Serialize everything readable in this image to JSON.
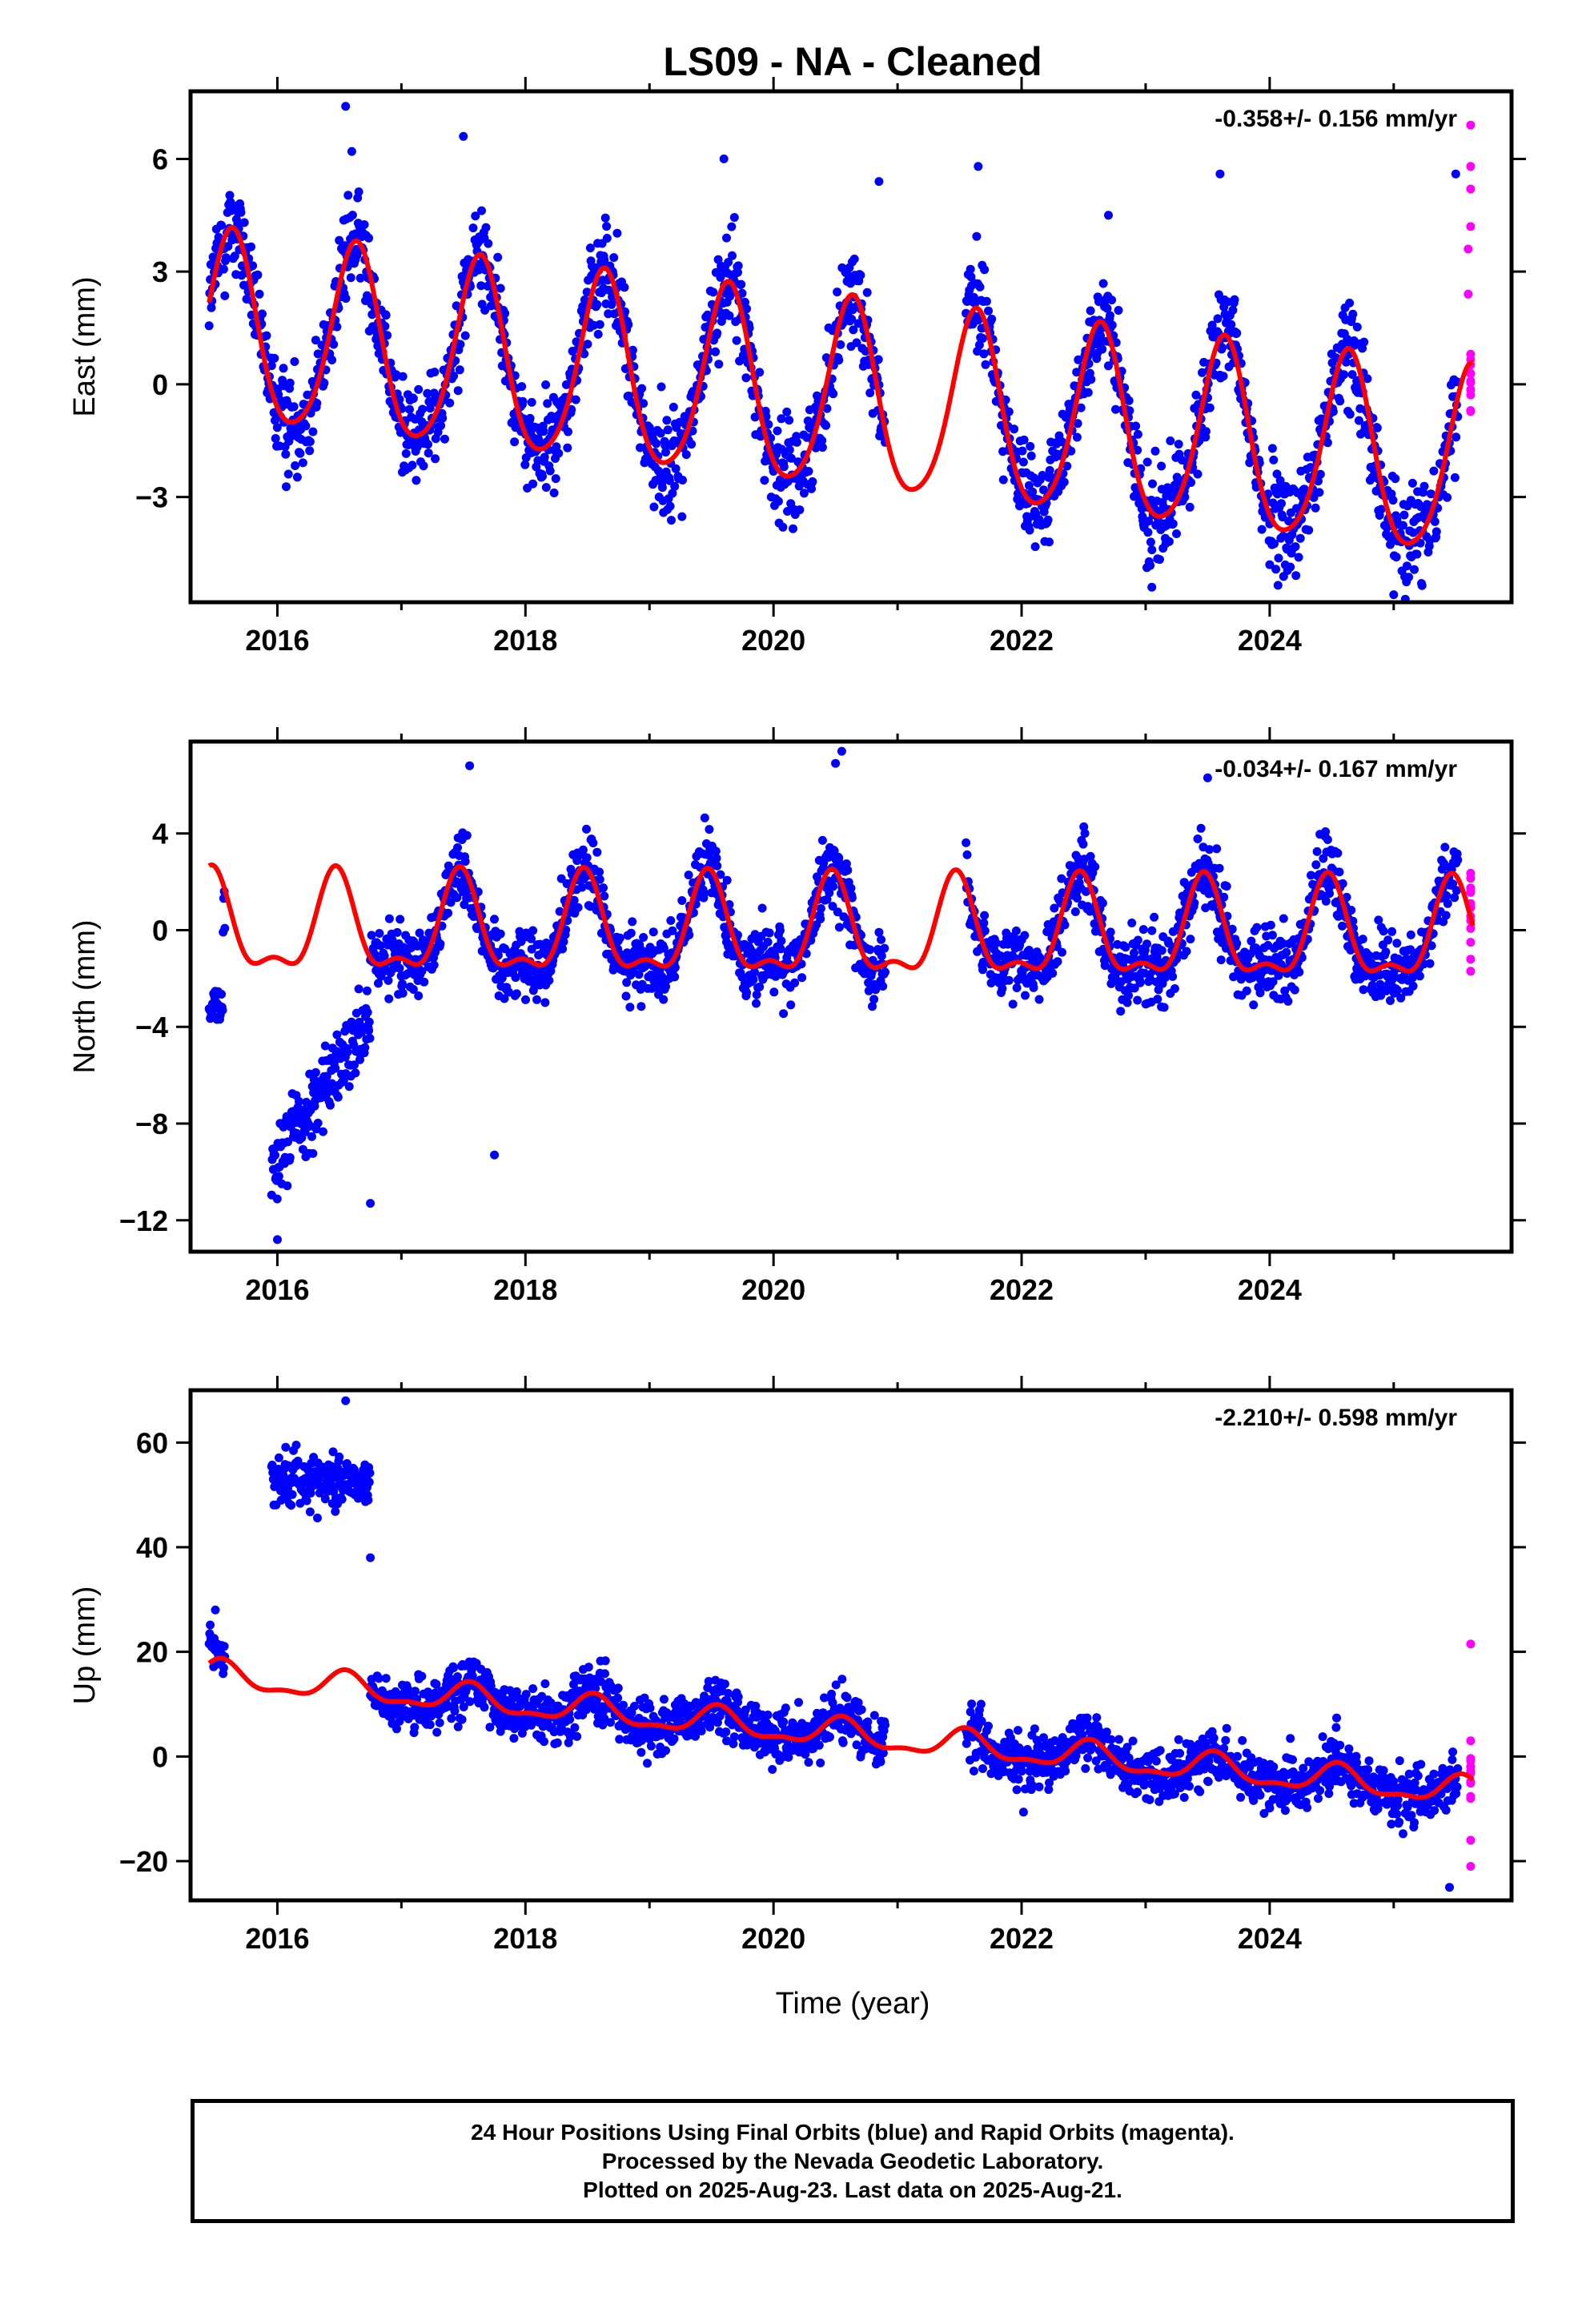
{
  "figure_title": "LS09  - NA - Cleaned",
  "xlabel": "Time (year)",
  "footer": {
    "line1": "24 Hour Positions Using Final Orbits (blue) and Rapid Orbits (magenta).",
    "line2": "Processed by the Nevada Geodetic Laboratory.",
    "line3": "Plotted on 2025-Aug-23. Last data on 2025-Aug-21."
  },
  "colors": {
    "final": "#0000ff",
    "rapid": "#ff00ff",
    "model": "#ff0000",
    "axis": "#000000"
  },
  "chart_data": [
    {
      "type": "scatter",
      "panel": "east",
      "ylabel": "East (mm)",
      "rate": "-0.358+/- 0.156 mm/yr",
      "xlim": [
        2015.3,
        2025.95
      ],
      "ylim": [
        -5.8,
        7.8
      ],
      "xticks": [
        2016,
        2018,
        2020,
        2022,
        2024
      ],
      "yticks": [
        -3,
        0,
        3,
        6
      ],
      "ytick_labels": [
        "−3",
        "0",
        "3",
        "6"
      ],
      "gaps": [
        [
          2020.9,
          2021.55
        ]
      ],
      "final_range": [
        2015.45,
        2025.52
      ],
      "rapid_range": [
        2025.53,
        2025.64
      ],
      "model": {
        "offset": 1.4,
        "trend": -0.358,
        "amp_annual": 2.5,
        "annual_phase_peak": 0.63,
        "amp_semi": 0.35,
        "semi_phase_peak": 0.15,
        "segments": [
          [
            2015.45,
            2025.64
          ]
        ]
      },
      "noise": 0.85,
      "series": [
        {
          "name": "Final Orbits (blue)",
          "points": [
            [
              2016.6,
              6.2
            ],
            [
              2016.55,
              7.4
            ],
            [
              2017.5,
              6.6
            ],
            [
              2019.6,
              6.0
            ],
            [
              2020.85,
              5.4
            ],
            [
              2021.65,
              5.8
            ],
            [
              2022.7,
              4.5
            ],
            [
              2023.05,
              -5.4
            ],
            [
              2023.6,
              5.6
            ],
            [
              2024.0,
              -4.8
            ],
            [
              2025.0,
              -5.6
            ],
            [
              2025.5,
              5.6
            ]
          ]
        },
        {
          "name": "Rapid Orbits (magenta)",
          "points": [
            [
              2025.62,
              6.9
            ],
            [
              2025.62,
              5.8
            ],
            [
              2025.62,
              5.2
            ],
            [
              2025.62,
              4.2
            ],
            [
              2025.6,
              3.6
            ],
            [
              2025.6,
              2.4
            ]
          ]
        }
      ]
    },
    {
      "type": "scatter",
      "panel": "north",
      "ylabel": "North (mm)",
      "rate": "-0.034+/- 0.167 mm/yr",
      "xlim": [
        2015.3,
        2025.95
      ],
      "ylim": [
        -13.3,
        7.8
      ],
      "xticks": [
        2016,
        2018,
        2020,
        2022,
        2024
      ],
      "yticks": [
        -12,
        -8,
        -4,
        0,
        4
      ],
      "ytick_labels": [
        "−12",
        "−8",
        "−4",
        "0",
        "4"
      ],
      "gaps": [
        [
          2015.58,
          2015.95
        ],
        [
          2020.9,
          2021.55
        ]
      ],
      "final_range": [
        2015.45,
        2025.52
      ],
      "rapid_range": [
        2025.53,
        2025.64
      ],
      "model": {
        "offset": 0.0,
        "trend": -0.034,
        "amp_annual": 1.9,
        "annual_phase_peak": 0.47,
        "amp_semi": 0.8,
        "semi_phase_peak": 0.47,
        "segments": [
          [
            2015.45,
            2025.64
          ]
        ]
      },
      "noise": 1.0,
      "special": [
        {
          "range": [
            2015.45,
            2015.56
          ],
          "mean_start": -3.0,
          "mean_end": -3.3,
          "noise": 0.7
        },
        {
          "range": [
            2015.95,
            2016.75
          ],
          "mean_start": -9.5,
          "mean_end": -4.0,
          "noise": 1.4
        }
      ],
      "series": [
        {
          "name": "Final Orbits (blue)",
          "points": [
            [
              2016.0,
              -12.8
            ],
            [
              2016.75,
              -11.3
            ],
            [
              2017.75,
              -9.3
            ],
            [
              2020.55,
              7.4
            ],
            [
              2020.5,
              6.9
            ],
            [
              2017.55,
              6.8
            ],
            [
              2023.5,
              6.3
            ]
          ]
        },
        {
          "name": "Rapid Orbits (magenta)",
          "points": [
            [
              2025.62,
              1.0
            ],
            [
              2025.62,
              -0.5
            ],
            [
              2025.62,
              -1.2
            ],
            [
              2025.62,
              -1.7
            ]
          ]
        }
      ]
    },
    {
      "type": "scatter",
      "panel": "up",
      "ylabel": "Up (mm)",
      "rate": "-2.210+/- 0.598 mm/yr",
      "xlim": [
        2015.3,
        2025.95
      ],
      "ylim": [
        -27.5,
        70
      ],
      "xticks": [
        2016,
        2018,
        2020,
        2022,
        2024
      ],
      "yticks": [
        -20,
        0,
        20,
        40,
        60
      ],
      "ytick_labels": [
        "−20",
        "0",
        "20",
        "40",
        "60"
      ],
      "gaps": [
        [
          2015.58,
          2015.95
        ],
        [
          2020.9,
          2021.55
        ]
      ],
      "final_range": [
        2015.45,
        2025.52
      ],
      "rapid_range": [
        2025.53,
        2025.64
      ],
      "model": {
        "offset": 15.5,
        "trend": -2.21,
        "amp_annual": 2.5,
        "annual_phase_peak": 0.55,
        "amp_semi": 1.0,
        "semi_phase_peak": 0.05,
        "segments": [
          [
            2015.45,
            2025.64
          ]
        ]
      },
      "noise": 3.6,
      "special": [
        {
          "range": [
            2015.45,
            2015.56
          ],
          "mean_start": 22.0,
          "mean_end": 20.0,
          "noise": 3.5
        },
        {
          "range": [
            2015.95,
            2016.75
          ],
          "mean_start": 53.0,
          "mean_end": 53.0,
          "noise": 4.3
        }
      ],
      "series": [
        {
          "name": "Final Orbits (blue)",
          "points": [
            [
              2016.55,
              68.0
            ],
            [
              2016.75,
              38.0
            ],
            [
              2015.5,
              28.0
            ],
            [
              2025.45,
              -25.0
            ]
          ]
        },
        {
          "name": "Rapid Orbits (magenta)",
          "points": [
            [
              2025.62,
              21.5
            ],
            [
              2025.62,
              3.0
            ],
            [
              2025.62,
              -8.0
            ],
            [
              2025.62,
              -16.0
            ],
            [
              2025.62,
              -21.0
            ]
          ]
        }
      ]
    }
  ]
}
